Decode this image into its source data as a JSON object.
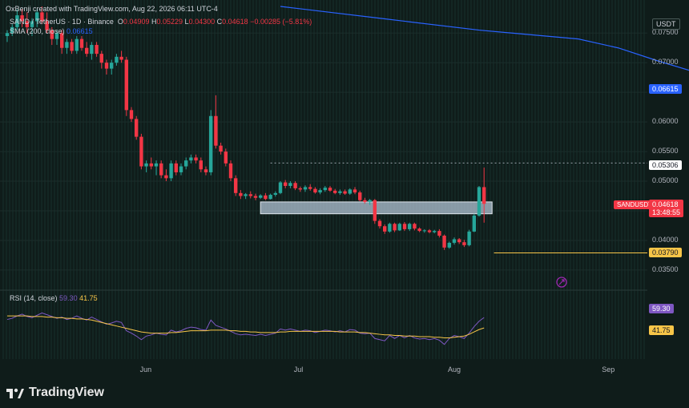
{
  "header": {
    "created": "OxBenji created with TradingView.com, Aug 22, 2026 06:11 UTC-4",
    "symbol": "SAND / TetherUS · 1D · Binance",
    "ohlc_o": "O",
    "ohlc_o_val": "0.04909",
    "ohlc_h": "H",
    "ohlc_h_val": "0.05229",
    "ohlc_l": "L",
    "ohlc_l_val": "0.04300",
    "ohlc_c": "C",
    "ohlc_c_val": "0.04618",
    "change": "−0.00285 (−5.81%)",
    "sma_label": "SMA (200, close)",
    "sma_val": "0.06615"
  },
  "currency": "USDT",
  "rsi_header": {
    "label": "RSI (14, close)",
    "rsi": "59.30",
    "ma": "41.75"
  },
  "price_tags": {
    "sma": "0.06615",
    "resistance": "0.05306",
    "symbol": "SANDUSDT",
    "last": "0.04618",
    "countdown": "13:48:55",
    "support": "0.03790",
    "rsi": "59.30",
    "rsi_ma": "41.75"
  },
  "brand": "TradingView",
  "colors": {
    "up": "#26a69a",
    "down": "#f23645",
    "sma": "#2962ff",
    "rsi": "#7e57c2",
    "rsi_ma": "#f7c548",
    "support": "#f7c548",
    "zone": "#b2c3d4"
  },
  "chart_data": {
    "type": "candlestick",
    "title": "SAND / TetherUS · 1D · Binance",
    "x_ticks": [
      "Jun",
      "Jul",
      "Aug",
      "Sep"
    ],
    "y_ticks": [
      "0.07500",
      "0.07000",
      "0.06500",
      "0.06000",
      "0.05500",
      "0.05000",
      "0.04500",
      "0.04000",
      "0.03500"
    ],
    "ylim": [
      0.0335,
      0.0795
    ],
    "sma_200": [
      [
        0,
        0.0795
      ],
      [
        20,
        0.0775
      ],
      [
        40,
        0.0755
      ],
      [
        60,
        0.074
      ],
      [
        68,
        0.0725
      ],
      [
        76,
        0.0703
      ],
      [
        84,
        0.0683
      ],
      [
        90,
        0.067
      ],
      [
        93,
        0.06615
      ]
    ],
    "candles": [
      [
        0.0745,
        0.0755,
        0.0735,
        0.075
      ],
      [
        0.075,
        0.0765,
        0.0745,
        0.076
      ],
      [
        0.076,
        0.079,
        0.0755,
        0.078
      ],
      [
        0.078,
        0.079,
        0.076,
        0.077
      ],
      [
        0.077,
        0.0785,
        0.075,
        0.076
      ],
      [
        0.076,
        0.0775,
        0.0745,
        0.077
      ],
      [
        0.077,
        0.079,
        0.076,
        0.0785
      ],
      [
        0.0785,
        0.0795,
        0.0765,
        0.077
      ],
      [
        0.077,
        0.0785,
        0.075,
        0.0755
      ],
      [
        0.0755,
        0.076,
        0.073,
        0.074
      ],
      [
        0.074,
        0.0755,
        0.073,
        0.075
      ],
      [
        0.075,
        0.0755,
        0.0715,
        0.0725
      ],
      [
        0.0725,
        0.074,
        0.0715,
        0.0735
      ],
      [
        0.0735,
        0.074,
        0.0715,
        0.072
      ],
      [
        0.072,
        0.0745,
        0.0715,
        0.074
      ],
      [
        0.074,
        0.0745,
        0.072,
        0.0725
      ],
      [
        0.0725,
        0.0735,
        0.071,
        0.0715
      ],
      [
        0.0715,
        0.0735,
        0.0705,
        0.073
      ],
      [
        0.073,
        0.0735,
        0.071,
        0.0715
      ],
      [
        0.0715,
        0.072,
        0.069,
        0.07
      ],
      [
        0.07,
        0.0705,
        0.068,
        0.069
      ],
      [
        0.069,
        0.0705,
        0.068,
        0.07
      ],
      [
        0.07,
        0.0715,
        0.0695,
        0.071
      ],
      [
        0.071,
        0.072,
        0.07,
        0.0705
      ],
      [
        0.0705,
        0.071,
        0.061,
        0.062
      ],
      [
        0.062,
        0.0625,
        0.06,
        0.0605
      ],
      [
        0.0605,
        0.061,
        0.057,
        0.0575
      ],
      [
        0.0575,
        0.058,
        0.052,
        0.0525
      ],
      [
        0.0525,
        0.0535,
        0.0515,
        0.053
      ],
      [
        0.053,
        0.054,
        0.052,
        0.0525
      ],
      [
        0.0525,
        0.0535,
        0.051,
        0.053
      ],
      [
        0.053,
        0.0535,
        0.0505,
        0.051
      ],
      [
        0.051,
        0.052,
        0.05,
        0.0505
      ],
      [
        0.0505,
        0.0535,
        0.05,
        0.053
      ],
      [
        0.053,
        0.0535,
        0.051,
        0.0515
      ],
      [
        0.0515,
        0.053,
        0.051,
        0.0525
      ],
      [
        0.0525,
        0.054,
        0.052,
        0.0535
      ],
      [
        0.0535,
        0.0545,
        0.053,
        0.054
      ],
      [
        0.054,
        0.0545,
        0.053,
        0.0535
      ],
      [
        0.0535,
        0.054,
        0.0515,
        0.052
      ],
      [
        0.052,
        0.0525,
        0.051,
        0.0515
      ],
      [
        0.0515,
        0.062,
        0.051,
        0.061
      ],
      [
        0.061,
        0.0645,
        0.0555,
        0.056
      ],
      [
        0.056,
        0.0565,
        0.0545,
        0.055
      ],
      [
        0.055,
        0.0555,
        0.0525,
        0.053
      ],
      [
        0.053,
        0.0535,
        0.05,
        0.0505
      ],
      [
        0.0505,
        0.051,
        0.0475,
        0.048
      ],
      [
        0.048,
        0.0485,
        0.047,
        0.0475
      ],
      [
        0.0475,
        0.048,
        0.047,
        0.0478
      ],
      [
        0.0478,
        0.0483,
        0.0471,
        0.0475
      ],
      [
        0.0475,
        0.0479,
        0.0468,
        0.0472
      ],
      [
        0.0472,
        0.0478,
        0.047,
        0.0476
      ],
      [
        0.0476,
        0.048,
        0.0468,
        0.047
      ],
      [
        0.047,
        0.0479,
        0.0469,
        0.0477
      ],
      [
        0.0477,
        0.0483,
        0.0474,
        0.048
      ],
      [
        0.048,
        0.05,
        0.0478,
        0.0498
      ],
      [
        0.0498,
        0.0502,
        0.0488,
        0.0492
      ],
      [
        0.0492,
        0.05,
        0.0488,
        0.0497
      ],
      [
        0.0497,
        0.05,
        0.0485,
        0.0488
      ],
      [
        0.0488,
        0.0491,
        0.0482,
        0.0486
      ],
      [
        0.0486,
        0.0493,
        0.0482,
        0.049
      ],
      [
        0.049,
        0.0495,
        0.0484,
        0.0487
      ],
      [
        0.0487,
        0.049,
        0.0479,
        0.0481
      ],
      [
        0.0481,
        0.0488,
        0.0478,
        0.0485
      ],
      [
        0.0485,
        0.0492,
        0.0482,
        0.0489
      ],
      [
        0.0489,
        0.0492,
        0.0482,
        0.0484
      ],
      [
        0.0484,
        0.0487,
        0.0478,
        0.048
      ],
      [
        0.048,
        0.0486,
        0.0477,
        0.0483
      ],
      [
        0.0483,
        0.0486,
        0.0477,
        0.0479
      ],
      [
        0.0479,
        0.0488,
        0.0477,
        0.0486
      ],
      [
        0.0486,
        0.049,
        0.0478,
        0.0481
      ],
      [
        0.0481,
        0.0484,
        0.0466,
        0.0468
      ],
      [
        0.0468,
        0.0472,
        0.0462,
        0.0465
      ],
      [
        0.0465,
        0.047,
        0.046,
        0.0468
      ],
      [
        0.0468,
        0.047,
        0.0428,
        0.0433
      ],
      [
        0.0433,
        0.0436,
        0.042,
        0.0424
      ],
      [
        0.0424,
        0.0427,
        0.0411,
        0.0415
      ],
      [
        0.0415,
        0.043,
        0.0413,
        0.0428
      ],
      [
        0.0428,
        0.043,
        0.0414,
        0.0417
      ],
      [
        0.0417,
        0.043,
        0.0416,
        0.0428
      ],
      [
        0.0428,
        0.0431,
        0.0416,
        0.0419
      ],
      [
        0.0419,
        0.043,
        0.0416,
        0.0428
      ],
      [
        0.0428,
        0.043,
        0.0417,
        0.042
      ],
      [
        0.042,
        0.0422,
        0.0414,
        0.0416
      ],
      [
        0.0416,
        0.0419,
        0.0413,
        0.0417
      ],
      [
        0.0417,
        0.0419,
        0.0412,
        0.0414
      ],
      [
        0.0414,
        0.0418,
        0.0412,
        0.0416
      ],
      [
        0.0416,
        0.0419,
        0.0405,
        0.0408
      ],
      [
        0.0408,
        0.041,
        0.0384,
        0.0388
      ],
      [
        0.0388,
        0.0398,
        0.0386,
        0.0396
      ],
      [
        0.0396,
        0.0405,
        0.0393,
        0.0402
      ],
      [
        0.0402,
        0.0404,
        0.0394,
        0.0397
      ],
      [
        0.0397,
        0.0401,
        0.0389,
        0.0392
      ],
      [
        0.0392,
        0.0418,
        0.039,
        0.0415
      ],
      [
        0.0415,
        0.0445,
        0.0414,
        0.0442
      ],
      [
        0.0442,
        0.0492,
        0.044,
        0.049
      ],
      [
        0.049,
        0.0523,
        0.043,
        0.04618
      ]
    ],
    "resistance_line": 0.05306,
    "support_line": 0.0379,
    "zone": [
      0.0445,
      0.0465
    ],
    "rsi": {
      "label": "RSI (14, close)",
      "ylim": [
        0,
        100
      ],
      "values": [
        56,
        58,
        62,
        65,
        61,
        59,
        63,
        67,
        64,
        61,
        58,
        60,
        56,
        58,
        62,
        58,
        55,
        60,
        56,
        52,
        48,
        50,
        53,
        51,
        37,
        33,
        28,
        22,
        28,
        30,
        33,
        31,
        30,
        38,
        35,
        37,
        41,
        43,
        42,
        39,
        38,
        55,
        46,
        43,
        40,
        36,
        32,
        30,
        31,
        30,
        29,
        31,
        29,
        31,
        33,
        40,
        38,
        40,
        38,
        36,
        38,
        37,
        34,
        36,
        38,
        37,
        35,
        37,
        35,
        39,
        38,
        33,
        32,
        33,
        24,
        22,
        20,
        29,
        24,
        29,
        25,
        29,
        25,
        23,
        24,
        22,
        24,
        21,
        14,
        24,
        29,
        27,
        24,
        33,
        44,
        53,
        59.3
      ],
      "ma": [
        62,
        62,
        62,
        62,
        62,
        61,
        61,
        61,
        60,
        60,
        59,
        59,
        58,
        58,
        57,
        57,
        56,
        55,
        53,
        51,
        49,
        47,
        45,
        43,
        41,
        39,
        37,
        35,
        34,
        33,
        33,
        33,
        33,
        34,
        34,
        35,
        36,
        37,
        37,
        37,
        37,
        38,
        38,
        38,
        38,
        37,
        37,
        36,
        36,
        35,
        35,
        34,
        34,
        34,
        34,
        35,
        35,
        36,
        36,
        36,
        36,
        36,
        36,
        36,
        36,
        36,
        36,
        35,
        35,
        35,
        35,
        34,
        34,
        33,
        32,
        31,
        30,
        30,
        29,
        29,
        28,
        28,
        28,
        27,
        27,
        27,
        26,
        26,
        25,
        25,
        26,
        27,
        28,
        31,
        35,
        39,
        41.75
      ]
    }
  }
}
